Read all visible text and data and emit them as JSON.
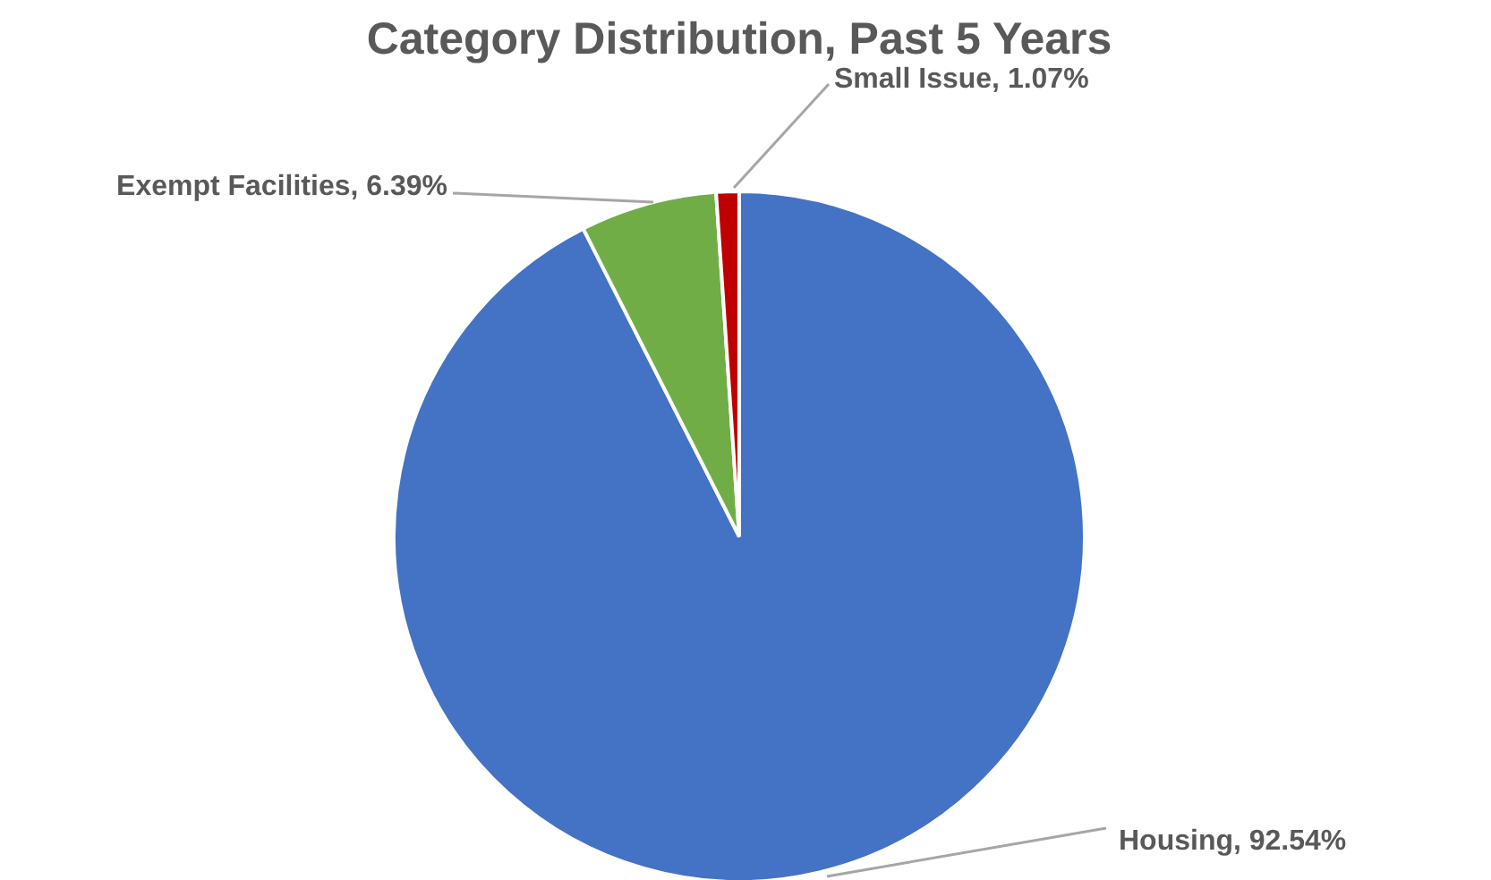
{
  "chart_data": {
    "type": "pie",
    "title": "Category Distribution, Past 5 Years",
    "categories": [
      "Housing",
      "Exempt Facilities",
      "Small Issue"
    ],
    "values": [
      92.54,
      6.39,
      1.07
    ],
    "colors": [
      "#4472c4",
      "#70ad47",
      "#c00000"
    ],
    "value_labels": [
      "92.54%",
      "6.39%",
      "1.07%"
    ]
  }
}
